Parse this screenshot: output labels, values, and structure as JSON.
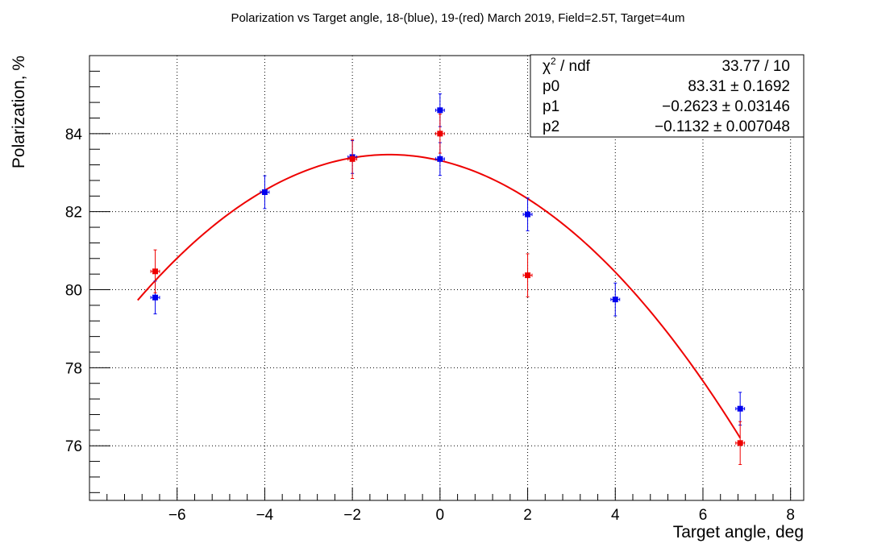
{
  "chart_data": {
    "type": "scatter",
    "title": "Polarization vs Target angle, 18-(blue), 19-(red) March 2019, Field=2.5T, Target=4um",
    "xlabel": "Target angle, deg",
    "ylabel": "Polarization, %",
    "xlim": [
      -8.0,
      8.3
    ],
    "ylim": [
      74.6,
      86.0
    ],
    "xticks": [
      -6,
      -4,
      -2,
      0,
      2,
      4,
      6,
      8
    ],
    "xtick_labels": [
      "−6",
      "−4",
      "−2",
      "0",
      "2",
      "4",
      "6",
      "8"
    ],
    "yticks": [
      76,
      78,
      80,
      82,
      84
    ],
    "ytick_labels": [
      "76",
      "78",
      "80",
      "82",
      "84"
    ],
    "grid": true,
    "series": [
      {
        "color": "#0000ee",
        "points": [
          {
            "x": -6.5,
            "y": 79.8,
            "yerr": 0.42,
            "xerr": 0.1
          },
          {
            "x": -4.0,
            "y": 82.5,
            "yerr": 0.42,
            "xerr": 0.1
          },
          {
            "x": -2.0,
            "y": 83.4,
            "yerr": 0.42,
            "xerr": 0.1
          },
          {
            "x": 0.0,
            "y": 84.6,
            "yerr": 0.42,
            "xerr": 0.1
          },
          {
            "x": 0.0,
            "y": 83.35,
            "yerr": 0.42,
            "xerr": 0.1
          },
          {
            "x": 2.0,
            "y": 81.93,
            "yerr": 0.42,
            "xerr": 0.1
          },
          {
            "x": 4.0,
            "y": 79.75,
            "yerr": 0.42,
            "xerr": 0.1
          },
          {
            "x": 6.85,
            "y": 76.95,
            "yerr": 0.42,
            "xerr": 0.1
          }
        ]
      },
      {
        "color": "#ee0000",
        "points": [
          {
            "x": -6.5,
            "y": 80.47,
            "yerr": 0.55,
            "xerr": 0.1
          },
          {
            "x": -2.0,
            "y": 83.35,
            "yerr": 0.5,
            "xerr": 0.1
          },
          {
            "x": 0.0,
            "y": 84.0,
            "yerr": 0.5,
            "xerr": 0.1
          },
          {
            "x": 2.0,
            "y": 80.37,
            "yerr": 0.55,
            "xerr": 0.1
          },
          {
            "x": 6.85,
            "y": 76.07,
            "yerr": 0.55,
            "xerr": 0.1
          }
        ]
      }
    ],
    "fit": {
      "color": "#ee0000",
      "function": "p0 + p1*x + p2*x^2",
      "x_range": [
        -6.9,
        6.85
      ],
      "p0": 83.31,
      "p1": -0.2623,
      "p2": -0.1132
    },
    "stats_box": {
      "position": "top-right",
      "rows": [
        {
          "name_base": "χ",
          "name_sup": "2",
          "name_rest": " / ndf",
          "value": "33.77 / 10"
        },
        {
          "name": "p0",
          "value": "83.31 ± 0.1692"
        },
        {
          "name": "p1",
          "value": "−0.2623 ± 0.03146"
        },
        {
          "name": "p2",
          "value": "−0.1132 ± 0.007048"
        }
      ]
    }
  }
}
